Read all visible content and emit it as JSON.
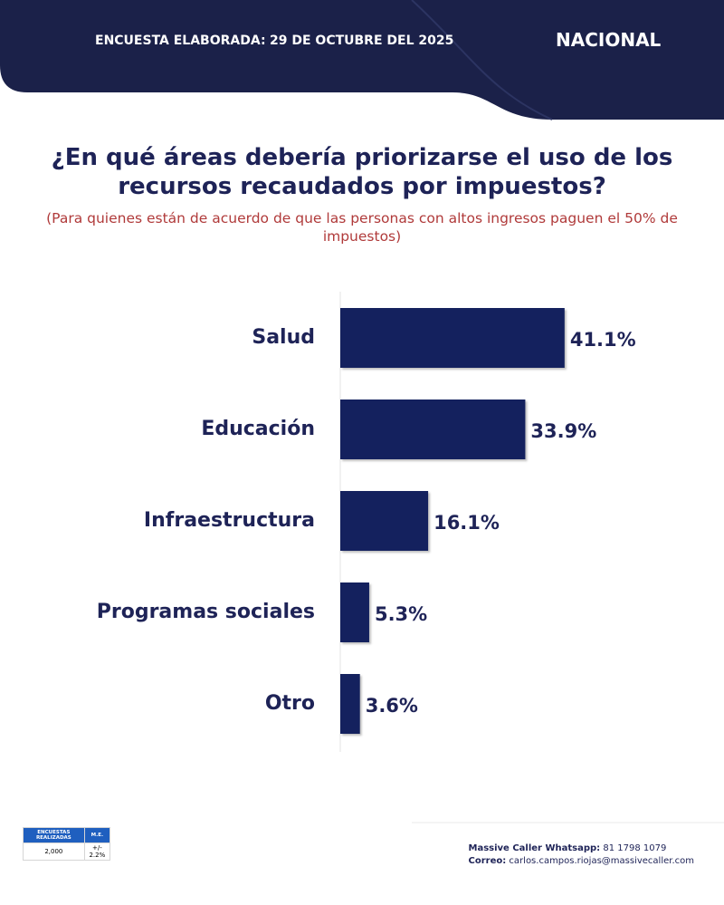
{
  "header": {
    "survey_label": "ENCUESTA ELABORADA:",
    "survey_date": "29 DE OCTUBRE DEL 2025",
    "region": "NACIONAL"
  },
  "chart_data": {
    "type": "bar",
    "orientation": "horizontal",
    "title": "¿En qué áreas debería priorizarse el uso de los recursos recaudados por impuestos?",
    "subtitle": "(Para quienes están de acuerdo de que las personas con altos ingresos paguen el 50% de impuestos)",
    "categories": [
      "Salud",
      "Educación",
      "Infraestructura",
      "Programas sociales",
      "Otro"
    ],
    "values": [
      41.1,
      33.9,
      16.1,
      5.3,
      3.6
    ],
    "value_labels": [
      "41.1%",
      "33.9%",
      "16.1%",
      "5.3%",
      "3.6%"
    ],
    "color": "#14215e"
  },
  "footer": {
    "table": {
      "headers": [
        "ENCUESTAS REALIZADAS",
        "M.E."
      ],
      "row": [
        "2,000",
        "+/- 2.2%"
      ]
    },
    "contact": {
      "whatsapp_label": "Massive Caller Whatsapp:",
      "whatsapp": "81 1798 1079",
      "email_label": "Correo:",
      "email": "carlos.campos.riojas@massivecaller.com"
    }
  }
}
